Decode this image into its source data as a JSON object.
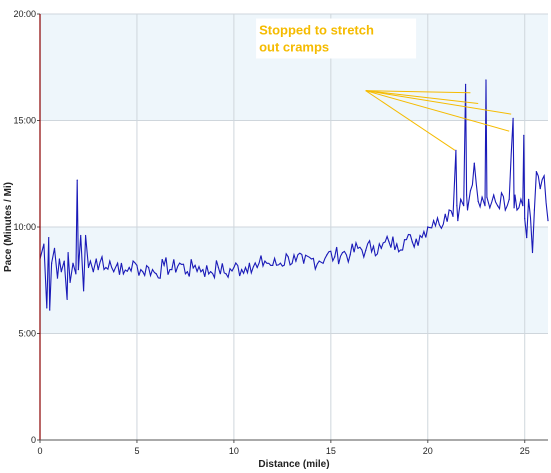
{
  "chart_data": {
    "type": "line",
    "title": "",
    "xlabel": "Distance (mile)",
    "ylabel": "Pace (Minutes / Mi)",
    "xlim": [
      0,
      26.2
    ],
    "ylim": [
      0,
      20
    ],
    "x_ticks": [
      0,
      5,
      10,
      15,
      20,
      25
    ],
    "x_tick_labels": [
      "0",
      "5",
      "10",
      "15",
      "20",
      "25"
    ],
    "y_ticks": [
      0,
      5,
      10,
      15,
      20
    ],
    "y_tick_labels": [
      "0",
      "5:00",
      "10:00",
      "15:00",
      "20:00"
    ],
    "grid": true,
    "band_color": "#eef6fb",
    "line_color": "#1a1ab8",
    "series": [
      {
        "x": [
          0,
          0.2,
          0.35,
          0.45,
          0.5,
          0.6,
          0.75,
          0.9,
          1.0,
          1.1,
          1.25,
          1.4,
          1.45,
          1.55,
          1.7,
          1.85,
          1.92,
          1.98,
          2.1,
          2.25,
          2.35,
          2.5,
          2.6,
          2.75,
          2.9,
          3.0,
          3.2,
          3.4,
          3.6,
          3.8,
          4.0,
          4.3,
          4.6,
          5.0,
          5.3,
          5.6,
          6.0,
          6.4,
          6.8,
          7.2,
          7.6,
          8.0,
          8.4,
          8.8,
          9.2,
          9.6,
          10.0,
          10.4,
          10.8,
          11.2,
          11.6,
          12.0,
          12.4,
          12.8,
          13.2,
          13.6,
          14.0,
          14.4,
          14.8,
          15.2,
          15.6,
          16.0,
          16.4,
          16.8,
          17.2,
          17.6,
          18.0,
          18.4,
          18.8,
          19.2,
          19.6,
          20.0,
          20.3,
          20.6,
          20.9,
          21.1,
          21.3,
          21.45,
          21.5,
          21.55,
          21.7,
          21.85,
          21.95,
          22.0,
          22.05,
          22.2,
          22.4,
          22.6,
          22.8,
          22.95,
          23.0,
          23.05,
          23.2,
          23.4,
          23.6,
          23.8,
          24.0,
          24.2,
          24.4,
          24.45,
          24.5,
          24.6,
          24.8,
          24.9,
          24.95,
          25.0,
          25.1,
          25.2,
          25.4,
          25.5,
          25.6,
          25.8,
          26.0,
          26.2
        ],
        "y": [
          8.5,
          9.2,
          6.2,
          9.5,
          6.1,
          8.3,
          9.0,
          7.6,
          8.5,
          7.9,
          8.4,
          6.6,
          8.8,
          7.4,
          8.3,
          7.8,
          12.2,
          8.0,
          9.6,
          7.0,
          9.6,
          8.1,
          8.4,
          7.9,
          8.5,
          8.0,
          8.6,
          8.1,
          8.4,
          7.9,
          8.3,
          7.8,
          8.1,
          8.2,
          7.9,
          8.1,
          7.8,
          8.2,
          8.0,
          8.3,
          7.9,
          8.2,
          8.0,
          7.9,
          8.1,
          7.8,
          8.1,
          8.0,
          8.3,
          8.1,
          8.4,
          8.2,
          8.3,
          8.6,
          8.4,
          8.3,
          8.5,
          8.4,
          8.7,
          8.6,
          8.8,
          8.7,
          9.0,
          8.9,
          9.1,
          9.0,
          9.3,
          9.2,
          9.4,
          9.3,
          9.6,
          10.0,
          10.3,
          10.1,
          10.6,
          10.8,
          10.5,
          13.6,
          11.0,
          10.3,
          11.3,
          11.0,
          16.7,
          11.5,
          10.8,
          11.7,
          13.0,
          11.2,
          11.4,
          11.0,
          16.9,
          11.4,
          10.9,
          11.5,
          11.0,
          11.6,
          10.8,
          11.3,
          15.1,
          10.9,
          11.5,
          10.8,
          11.3,
          11.0,
          14.3,
          10.4,
          9.5,
          11.3,
          8.8,
          10.8,
          12.6,
          11.8,
          12.4,
          10.3
        ],
        "name": ""
      }
    ],
    "annotations": [
      {
        "text_lines": [
          "Stopped to stretch",
          "out cramps"
        ],
        "color": "#f5bb00",
        "targets": [
          [
            21.4,
            13.6
          ],
          [
            22.2,
            16.3
          ],
          [
            22.6,
            15.8
          ],
          [
            24.3,
            15.3
          ],
          [
            24.2,
            14.5
          ]
        ],
        "anchor": [
          16.8,
          16.4
        ]
      }
    ]
  }
}
